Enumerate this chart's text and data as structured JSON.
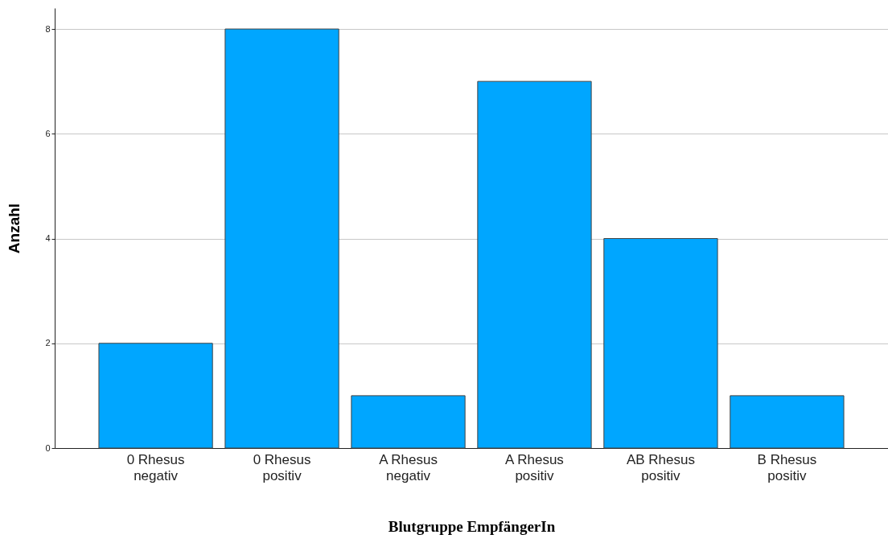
{
  "chart_data": {
    "type": "bar",
    "xlabel": "Blutgruppe EmpfängerIn",
    "ylabel": "Anzahl",
    "categories": [
      "0 Rhesus negativ",
      "0 Rhesus positiv",
      "A Rhesus negativ",
      "A Rhesus positiv",
      "AB Rhesus positiv",
      "B Rhesus positiv"
    ],
    "values": [
      2,
      8,
      1,
      7,
      4,
      1
    ],
    "color": "#00a6ff",
    "ylim": [
      0,
      8.4
    ],
    "yticks": [
      0,
      2,
      4,
      6,
      8
    ],
    "grid": "y"
  }
}
